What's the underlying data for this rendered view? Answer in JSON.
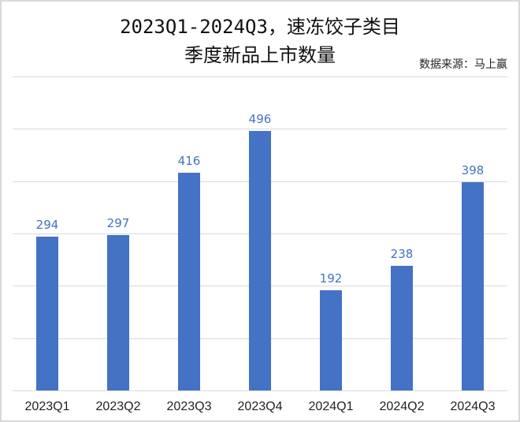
{
  "header": {
    "title_line1": "2023Q1-2024Q3，速冻饺子类目",
    "title_line2": "季度新品上市数量",
    "source": "数据来源：马上赢"
  },
  "colors": {
    "bar": "#4472C4",
    "label": "#4472C4",
    "grid": "#d9d9d9"
  },
  "chart_data": {
    "type": "bar",
    "title": "2023Q1-2024Q3，速冻饺子类目季度新品上市数量",
    "subtitle": "数据来源：马上赢",
    "categories": [
      "2023Q1",
      "2023Q2",
      "2023Q3",
      "2023Q4",
      "2024Q1",
      "2024Q2",
      "2024Q3"
    ],
    "values": [
      294,
      297,
      416,
      496,
      192,
      238,
      398
    ],
    "xlabel": "",
    "ylabel": "",
    "ylim": [
      0,
      600
    ],
    "grid": true,
    "gridlines": [
      0,
      100,
      200,
      300,
      400,
      500,
      600
    ],
    "y_tick_labels_visible": false,
    "data_labels": true,
    "legend": "none"
  }
}
